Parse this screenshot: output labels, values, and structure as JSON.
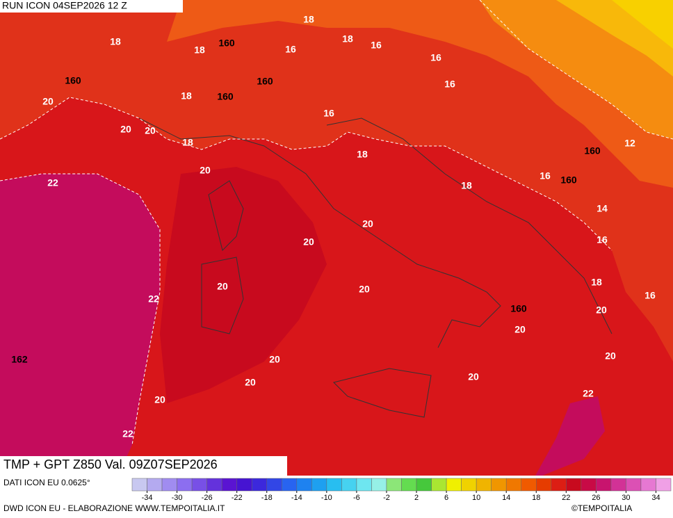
{
  "header": {
    "run": "RUN ICON 04SEP2026 12 Z"
  },
  "map": {
    "labels": [
      18,
      160,
      18,
      18,
      18,
      16,
      16,
      16,
      160,
      160,
      16,
      20,
      18,
      160,
      16,
      20,
      20,
      18,
      18,
      160,
      12,
      20,
      22,
      18,
      16,
      160,
      14,
      20,
      20,
      16,
      18,
      20,
      20,
      22,
      16,
      160,
      20,
      20,
      162,
      20,
      20,
      20,
      20,
      22,
      20,
      22
    ]
  },
  "footer": {
    "title": "TMP + GPT Z850 Val. 09Z07SEP2026",
    "data_source": "DATI ICON EU 0.0625°",
    "credit": "DWD ICON EU - ELABORAZIONE WWW.TEMPOITALIA.IT",
    "copyright": "©TEMPOITALIA"
  },
  "colorbar": {
    "colors": [
      "#c8c8f0",
      "#b4aaf0",
      "#a08cf0",
      "#8c6ef0",
      "#7850e6",
      "#6432dc",
      "#5a14d2",
      "#4614d2",
      "#3c28dc",
      "#3246e6",
      "#2864f0",
      "#1e82f0",
      "#1ea0f0",
      "#28bef0",
      "#46d2f0",
      "#6ee6f0",
      "#96f0e6",
      "#8ce678",
      "#64dc50",
      "#46c83c",
      "#aae632",
      "#f0f000",
      "#f0d200",
      "#f0b400",
      "#f09600",
      "#f07800",
      "#f05a00",
      "#e63c00",
      "#dc1e14",
      "#c80a1e",
      "#c80a46",
      "#c8146e",
      "#d23296",
      "#dc50b4",
      "#e678d2",
      "#f0a0e6"
    ],
    "ticks": [
      -34,
      -30,
      -26,
      -22,
      -18,
      -14,
      -10,
      -6,
      -2,
      2,
      6,
      10,
      14,
      18,
      22,
      26,
      30,
      34
    ]
  }
}
